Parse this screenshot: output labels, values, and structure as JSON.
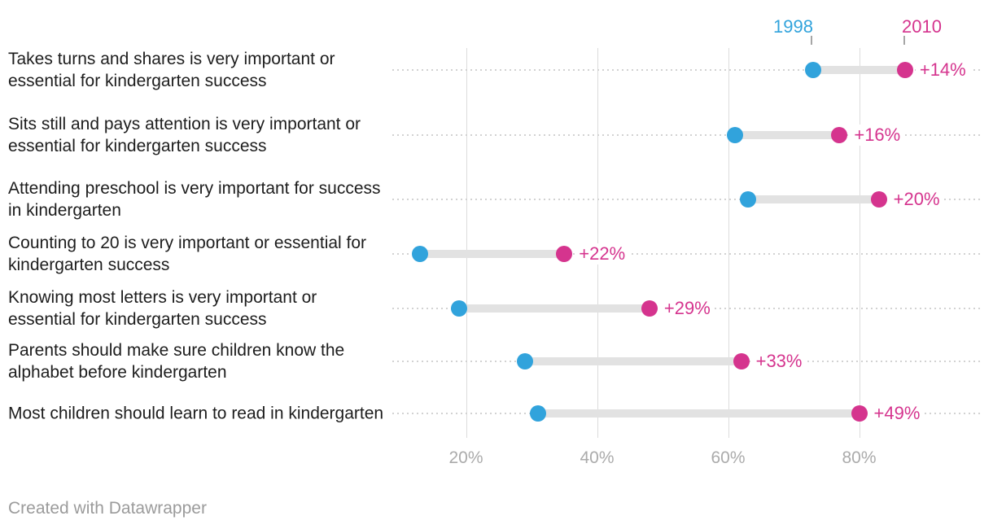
{
  "legend": {
    "series1_label": "1998",
    "series2_label": "2010"
  },
  "footer": {
    "credit": "Created with Datawrapper"
  },
  "colors": {
    "series1_blue": "#31a3dc",
    "series2_pink": "#d5348e",
    "connector_bar": "#e2e2e2",
    "gridline": "#dcdcdc",
    "leader_dots": "#d2d2d2",
    "axis_text": "#ababab",
    "category_text": "#1d1d1d",
    "footer_text": "#9b9b9b"
  },
  "chart_data": {
    "type": "scatter",
    "variant": "dumbbell-range-plot",
    "title": "",
    "xlabel": "",
    "ylabel": "",
    "categories": [
      "Takes turns and shares is very important or essential for kindergarten success",
      "Sits still and pays attention is very important or essential for kindergarten success",
      "Attending preschool is very important for success in kindergarten",
      "Counting to 20 is very important or essential for kindergarten success",
      "Knowing most letters is very important or essential for kindergarten success",
      "Parents should make sure children know the alphabet before kindergarten",
      "Most children should learn to read in kindergarten"
    ],
    "series": [
      {
        "name": "1998",
        "values": [
          73,
          61,
          63,
          13,
          19,
          29,
          31
        ]
      },
      {
        "name": "2010",
        "values": [
          87,
          77,
          83,
          35,
          48,
          62,
          80
        ]
      }
    ],
    "change_labels": [
      "+14%",
      "+16%",
      "+20%",
      "+22%",
      "+29%",
      "+33%",
      "+49%"
    ],
    "x_tick_values": [
      20,
      40,
      60,
      80
    ],
    "x_tick_labels": [
      "20%",
      "40%",
      "60%",
      "80%"
    ],
    "xlim": [
      8.8,
      98.8
    ],
    "grid": "vertical-gridlines-on",
    "legend_position": "top-right-above-first-row"
  }
}
